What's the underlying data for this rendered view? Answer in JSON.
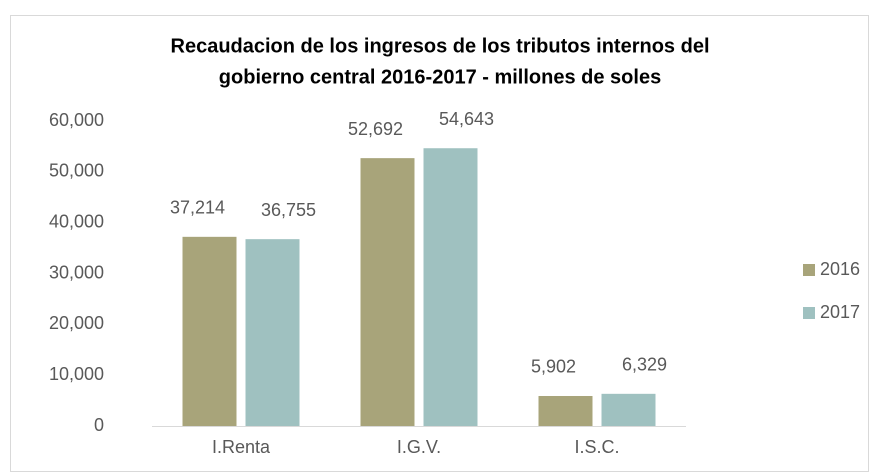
{
  "chart_data": {
    "type": "bar",
    "title": [
      "Recaudacion de los ingresos de los tributos internos del",
      "gobierno central 2016-2017 - millones de soles"
    ],
    "categories": [
      "I.Renta",
      "I.G.V.",
      "I.S.C."
    ],
    "series": [
      {
        "name": "2016",
        "color": "#a8a47a",
        "values": [
          37214,
          52692,
          5902
        ],
        "value_labels": [
          "37,214",
          "52,692",
          "5,902"
        ]
      },
      {
        "name": "2017",
        "color": "#9fc1c0",
        "values": [
          36755,
          54643,
          6329
        ],
        "value_labels": [
          "36,755",
          "54,643",
          "6,329"
        ]
      }
    ],
    "ylim": [
      0,
      60000
    ],
    "yticks": [
      0,
      {
        "value": 10000,
        "label": "10,000"
      },
      {
        "value": 20000,
        "label": "20,000"
      },
      {
        "value": 30000,
        "label": "30,000"
      },
      {
        "value": 40000,
        "label": "40,000"
      },
      {
        "value": 50000,
        "label": "50,000"
      },
      {
        "value": 60000,
        "label": "60,000"
      }
    ],
    "grid": false,
    "legend": "right"
  }
}
